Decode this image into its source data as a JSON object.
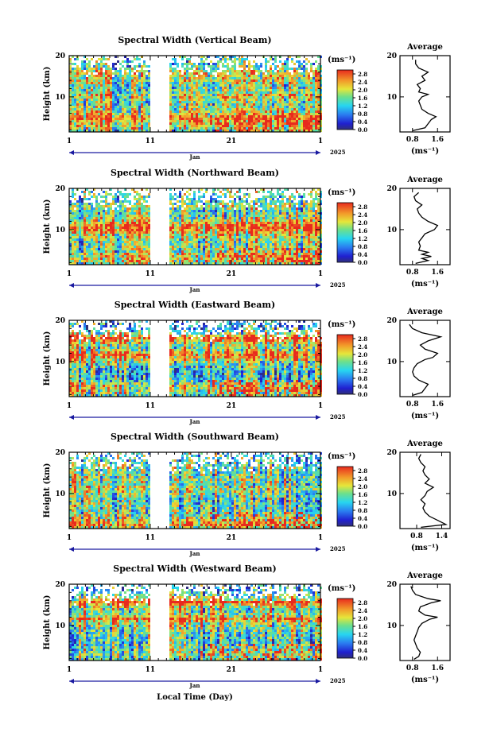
{
  "figure": {
    "xlabel": "Local Time (Day)",
    "month_label": "Jan",
    "year_label": "2025"
  },
  "chart_data": [
    {
      "type": "heatmap",
      "title": "Spectral Width (Vertical Beam)",
      "ylabel": "Height (km)",
      "xlabel": "Local Time (Day)",
      "x_range": [
        1,
        32
      ],
      "x_ticks": [
        "1",
        "11",
        "21",
        "1"
      ],
      "ylim": [
        1.5,
        20
      ],
      "y_ticks": [
        "10",
        "20"
      ],
      "colorbar": {
        "unit": "(ms⁻¹)",
        "range": [
          0.0,
          3.0
        ],
        "ticks": [
          "0.0",
          "0.4",
          "0.8",
          "1.2",
          "1.6",
          "2.0",
          "2.4",
          "2.8"
        ]
      },
      "data_gaps_days": [
        [
          11.0,
          13.2
        ],
        [
          14.0,
          14.2
        ]
      ],
      "average": {
        "title": "Average",
        "unit": "(ms⁻¹)",
        "x_ticks": [
          "0.8",
          "1.6"
        ],
        "y_ticks": [
          "10",
          "20"
        ],
        "xlim": [
          0.4,
          2.0
        ],
        "ylim": [
          1.5,
          20
        ],
        "height_km": [
          1.8,
          2.5,
          3.5,
          4.5,
          5.2,
          6.0,
          7.0,
          8.0,
          9.0,
          10.0,
          10.6,
          11.2,
          12.0,
          13.0,
          14.0,
          15.0,
          16.0,
          17.0,
          18.0,
          19.0
        ],
        "width_ms": [
          0.8,
          1.2,
          1.3,
          1.4,
          1.55,
          1.3,
          1.1,
          1.05,
          1.0,
          1.1,
          1.3,
          1.0,
          1.05,
          0.95,
          1.2,
          1.1,
          1.3,
          1.0,
          0.9,
          0.9
        ]
      }
    },
    {
      "type": "heatmap",
      "title": "Spectral Width (Northward Beam)",
      "ylabel": "Height (km)",
      "xlabel": "Local Time (Day)",
      "x_range": [
        1,
        32
      ],
      "x_ticks": [
        "1",
        "11",
        "21",
        "1"
      ],
      "ylim": [
        1.5,
        20
      ],
      "y_ticks": [
        "10",
        "20"
      ],
      "colorbar": {
        "unit": "(ms⁻¹)",
        "range": [
          0.0,
          3.0
        ],
        "ticks": [
          "0.0",
          "0.4",
          "0.8",
          "1.2",
          "1.6",
          "2.0",
          "2.4",
          "2.8"
        ]
      },
      "data_gaps_days": [
        [
          11.0,
          13.2
        ],
        [
          14.0,
          14.2
        ]
      ],
      "average": {
        "title": "Average",
        "unit": "(ms⁻¹)",
        "x_ticks": [
          "0.8",
          "1.6"
        ],
        "y_ticks": [
          "10",
          "20"
        ],
        "xlim": [
          0.4,
          2.0
        ],
        "ylim": [
          1.5,
          20
        ],
        "height_km": [
          1.8,
          2.5,
          3.0,
          3.5,
          4.0,
          4.5,
          5.0,
          6.0,
          7.0,
          8.0,
          9.0,
          10.0,
          11.0,
          12.0,
          13.0,
          14.0,
          15.0,
          16.0,
          17.0,
          18.0,
          19.0
        ],
        "width_ms": [
          0.9,
          1.3,
          1.1,
          1.4,
          1.1,
          1.3,
          1.0,
          1.05,
          1.0,
          1.1,
          1.2,
          1.5,
          1.6,
          1.3,
          1.1,
          1.0,
          0.95,
          1.1,
          0.9,
          0.85,
          1.0
        ]
      }
    },
    {
      "type": "heatmap",
      "title": "Spectral Width (Eastward Beam)",
      "ylabel": "Height (km)",
      "xlabel": "Local Time (Day)",
      "x_range": [
        1,
        32
      ],
      "x_ticks": [
        "1",
        "11",
        "21",
        "1"
      ],
      "ylim": [
        1.5,
        20
      ],
      "y_ticks": [
        "10",
        "20"
      ],
      "colorbar": {
        "unit": "(ms⁻¹)",
        "range": [
          0.0,
          3.0
        ],
        "ticks": [
          "0.0",
          "0.4",
          "0.8",
          "1.2",
          "1.6",
          "2.0",
          "2.4",
          "2.8"
        ]
      },
      "data_gaps_days": [
        [
          11.0,
          13.2
        ],
        [
          14.0,
          14.2
        ]
      ],
      "average": {
        "title": "Average",
        "unit": "(ms⁻¹)",
        "x_ticks": [
          "0.8",
          "1.6"
        ],
        "y_ticks": [
          "10",
          "20"
        ],
        "xlim": [
          0.4,
          2.0
        ],
        "ylim": [
          1.5,
          20
        ],
        "height_km": [
          1.8,
          2.5,
          3.5,
          4.5,
          5.5,
          6.5,
          7.5,
          8.5,
          9.5,
          10.5,
          11.0,
          12.0,
          12.5,
          13.0,
          14.0,
          15.0,
          16.0,
          17.0,
          18.0,
          19.0
        ],
        "width_ms": [
          0.8,
          1.1,
          1.2,
          1.3,
          1.0,
          0.85,
          0.8,
          0.85,
          0.95,
          1.2,
          1.45,
          1.6,
          1.4,
          1.2,
          1.05,
          1.3,
          1.7,
          1.1,
          0.8,
          0.7
        ]
      }
    },
    {
      "type": "heatmap",
      "title": "Spectral Width (Southward Beam)",
      "ylabel": "Height (km)",
      "xlabel": "Local Time (Day)",
      "x_range": [
        1,
        32
      ],
      "x_ticks": [
        "1",
        "11",
        "21",
        "1"
      ],
      "ylim": [
        1.5,
        20
      ],
      "y_ticks": [
        "10",
        "20"
      ],
      "colorbar": {
        "unit": "(ms⁻¹)",
        "range": [
          0.0,
          3.0
        ],
        "ticks": [
          "0.0",
          "0.4",
          "0.8",
          "1.2",
          "1.6",
          "2.0",
          "2.4",
          "2.8"
        ]
      },
      "data_gaps_days": [
        [
          11.0,
          13.2
        ],
        [
          14.0,
          14.2
        ]
      ],
      "average": {
        "title": "Average",
        "unit": "(ms⁻¹)",
        "x_ticks": [
          "0.8",
          "1.4"
        ],
        "y_ticks": [
          "10",
          "20"
        ],
        "xlim": [
          0.4,
          1.6
        ],
        "ylim": [
          1.5,
          20
        ],
        "height_km": [
          1.8,
          2.5,
          3.5,
          4.5,
          5.5,
          6.5,
          7.5,
          8.5,
          9.5,
          10.5,
          11.5,
          12.5,
          13.5,
          14.5,
          15.5,
          16.5,
          17.5,
          18.5,
          19.5
        ],
        "width_ms": [
          0.9,
          1.5,
          1.3,
          1.1,
          1.0,
          0.95,
          1.0,
          0.9,
          1.0,
          1.05,
          1.2,
          1.0,
          1.1,
          1.0,
          0.95,
          1.0,
          0.9,
          0.85,
          0.9
        ]
      }
    },
    {
      "type": "heatmap",
      "title": "Spectral Width (Westward Beam)",
      "ylabel": "Height (km)",
      "xlabel": "Local Time (Day)",
      "x_range": [
        1,
        32
      ],
      "x_ticks": [
        "1",
        "11",
        "21",
        "1"
      ],
      "ylim": [
        1.5,
        20
      ],
      "y_ticks": [
        "10",
        "20"
      ],
      "colorbar": {
        "unit": "(ms⁻¹)",
        "range": [
          0.0,
          3.0
        ],
        "ticks": [
          "0.0",
          "0.4",
          "0.8",
          "1.2",
          "1.6",
          "2.0",
          "2.4",
          "2.8"
        ]
      },
      "data_gaps_days": [
        [
          11.0,
          13.2
        ],
        [
          14.0,
          14.2
        ]
      ],
      "average": {
        "title": "Average",
        "unit": "(ms⁻¹)",
        "x_ticks": [
          "0.8",
          "1.6"
        ],
        "y_ticks": [
          "10",
          "20"
        ],
        "xlim": [
          0.4,
          2.0
        ],
        "ylim": [
          1.5,
          20
        ],
        "height_km": [
          1.8,
          2.5,
          3.5,
          4.5,
          5.5,
          6.5,
          7.5,
          8.5,
          9.5,
          10.5,
          11.5,
          12.0,
          12.5,
          13.5,
          14.5,
          15.5,
          16.0,
          16.5,
          17.5,
          18.5,
          19.5
        ],
        "width_ms": [
          0.85,
          1.0,
          1.05,
          0.95,
          0.9,
          0.85,
          0.9,
          0.95,
          1.0,
          1.1,
          1.35,
          1.6,
          1.2,
          1.0,
          1.05,
          1.4,
          1.7,
          1.3,
          0.9,
          0.8,
          0.75
        ]
      }
    }
  ]
}
